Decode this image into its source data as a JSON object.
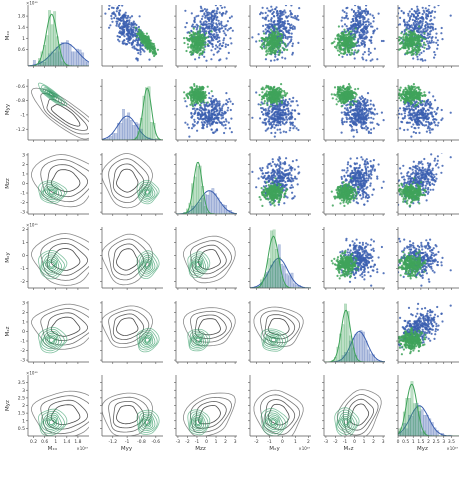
{
  "chart_data": {
    "type": "scatter",
    "subtype": "pair-plot",
    "variables": [
      "Mxx",
      "Myy",
      "Mzz",
      "Mxy",
      "Mxz",
      "Myz"
    ],
    "variable_labels": [
      "Mₓₓ",
      "Myy",
      "Mzz",
      "Mₓy",
      "Mₓz",
      "Myz"
    ],
    "offset_labels": [
      "×10¹⁹",
      "",
      "",
      "×10¹⁹",
      "",
      "×10¹⁹"
    ],
    "upper_triangle": "scatter",
    "diagonal": "histogram + kde",
    "lower_triangle": "kde contours",
    "series": [
      {
        "name": "",
        "color": "#3b5fb0",
        "mean": [
          1.35,
          -1.0,
          0.3,
          -0.3,
          0.5,
          1.4
        ],
        "sd": [
          0.45,
          0.13,
          1.0,
          0.7,
          0.85,
          0.6
        ]
      },
      {
        "name": "",
        "color": "#3fa35a",
        "mean": [
          0.85,
          -0.72,
          -0.9,
          -0.7,
          -0.9,
          0.9
        ],
        "sd": [
          0.2,
          0.06,
          0.45,
          0.4,
          0.5,
          0.35
        ]
      }
    ],
    "correlations": [
      {
        "pair": [
          "Mxx",
          "Myy"
        ],
        "series": 0,
        "r": -0.75
      },
      {
        "pair": [
          "Mxx",
          "Myy"
        ],
        "series": 1,
        "r": -0.85
      },
      {
        "pair": [
          "Mzz",
          "Myz"
        ],
        "series": 0,
        "r": 0.35
      },
      {
        "pair": [
          "Mxz",
          "Myz"
        ],
        "series": 0,
        "r": 0.3
      }
    ],
    "axes": [
      {
        "var": "Mxx",
        "lim": [
          0.0,
          2.2
        ],
        "ticks": [
          0.2,
          0.6,
          1.0,
          1.4,
          1.8
        ],
        "y_ticks": [
          0.6,
          1.0,
          1.4,
          1.8
        ]
      },
      {
        "var": "Myy",
        "lim": [
          -1.35,
          -0.5
        ],
        "ticks": [
          -1.2,
          -1.0,
          -0.8,
          -0.6
        ],
        "y_ticks": [
          -1.2,
          -1.0,
          -0.8,
          -0.6
        ]
      },
      {
        "var": "Mzz",
        "lim": [
          -3.2,
          3.2
        ],
        "ticks": [
          -3,
          -2,
          -1,
          0,
          1,
          2,
          3
        ],
        "y_ticks": [
          -3,
          -2,
          -1,
          0,
          1,
          2,
          3
        ]
      },
      {
        "var": "Mxy",
        "lim": [
          -2.5,
          2.2
        ],
        "ticks": [
          -2,
          -1,
          0,
          1,
          2
        ],
        "y_ticks": [
          -2,
          -1,
          0,
          1,
          2
        ]
      },
      {
        "var": "Mxz",
        "lim": [
          -3.2,
          3.2
        ],
        "ticks": [
          -3,
          -2,
          -1,
          0,
          1,
          2,
          3
        ],
        "y_ticks": [
          -3,
          -2,
          -1,
          0,
          1,
          2,
          3
        ]
      },
      {
        "var": "Myz",
        "lim": [
          0.0,
          4.0
        ],
        "ticks": [
          0.0,
          0.5,
          1.0,
          1.5,
          2.0,
          2.5,
          3.0,
          3.5
        ],
        "y_ticks": [
          0.5,
          1.0,
          1.5,
          2.0,
          2.5,
          3.0,
          3.5
        ]
      }
    ],
    "grid": false,
    "legend": "none"
  }
}
